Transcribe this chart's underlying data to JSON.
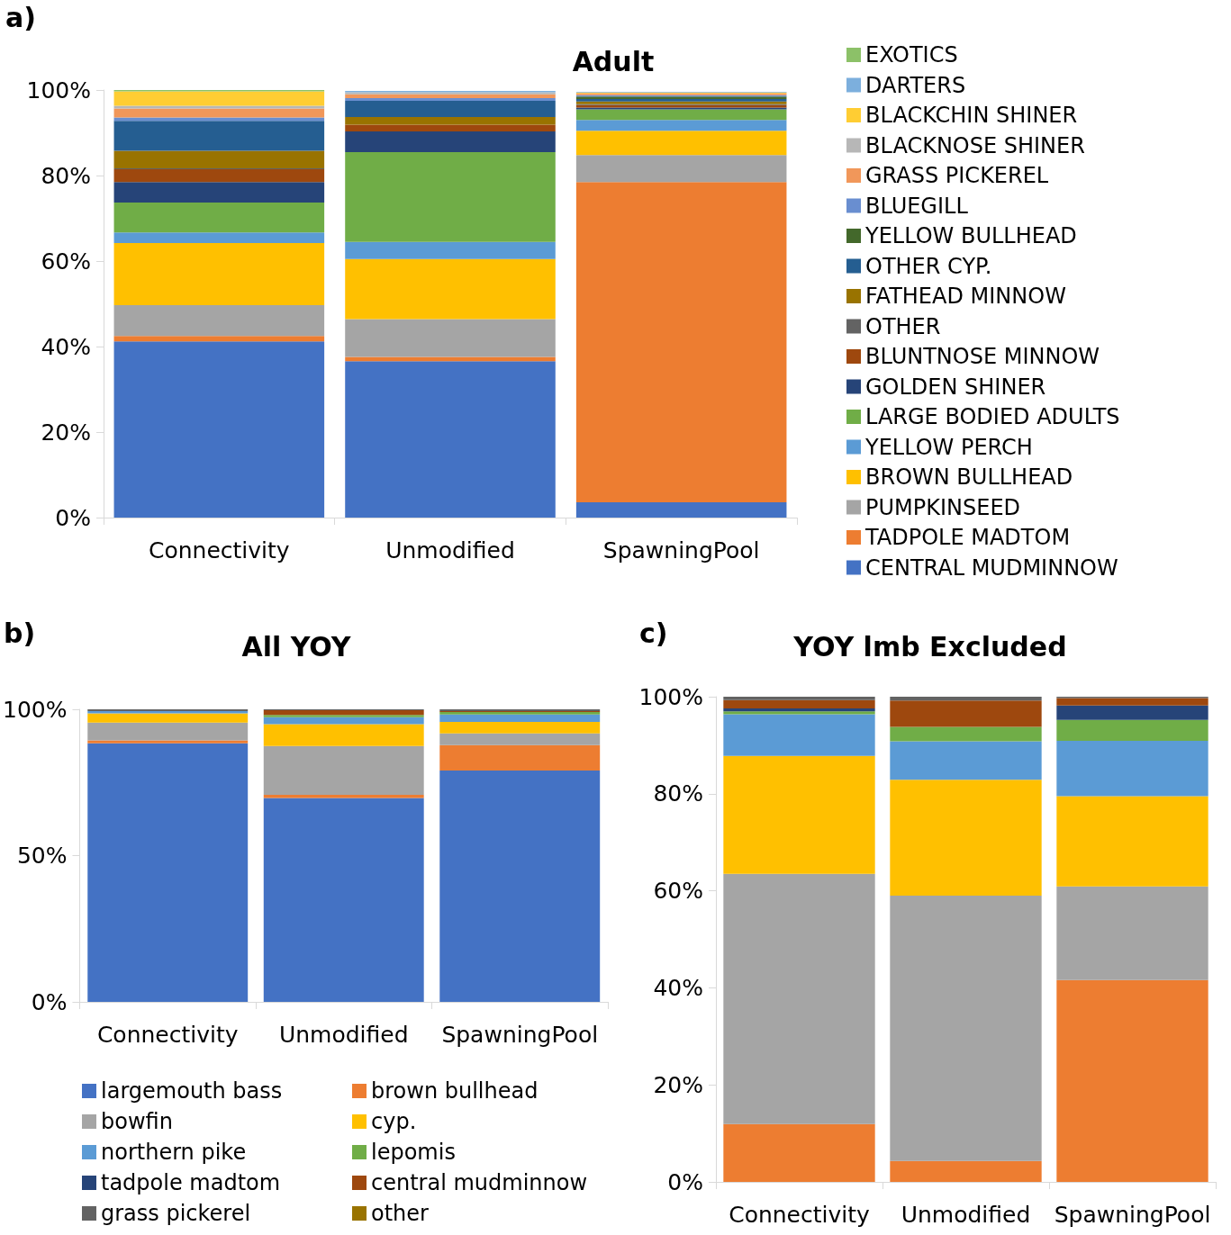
{
  "chart_data": [
    {
      "type": "bar",
      "title": "Adult",
      "annotations": [
        "a)"
      ],
      "categories": [
        "Connectivity",
        "Unmodified",
        "SpawningPool"
      ],
      "stacked": true,
      "legend": "right",
      "grid": false,
      "ylim": [
        0,
        100
      ],
      "yticks": [
        {
          "value": 0,
          "label": "0%"
        },
        {
          "value": 20,
          "label": "20%"
        },
        {
          "value": 40,
          "label": "40%"
        },
        {
          "value": 60,
          "label": "60%"
        },
        {
          "value": 80,
          "label": "80%"
        },
        {
          "value": 100,
          "label": "100%"
        }
      ],
      "series": [
        {
          "name": "CENTRAL MUDMINNOW",
          "color": "#4472c4",
          "values": [
            41.2,
            36.6,
            3.6
          ]
        },
        {
          "name": "TADPOLE MADTOM",
          "color": "#ed7d31",
          "values": [
            1.3,
            1.0,
            74.9
          ]
        },
        {
          "name": "PUMPKINSEED",
          "color": "#a5a5a5",
          "values": [
            7.2,
            8.8,
            6.3
          ]
        },
        {
          "name": "BROWN BULLHEAD",
          "color": "#ffc000",
          "values": [
            14.5,
            14.1,
            5.7
          ]
        },
        {
          "name": "YELLOW PERCH",
          "color": "#5b9bd5",
          "values": [
            2.5,
            4.0,
            2.5
          ]
        },
        {
          "name": "LARGE BODIED ADULTS",
          "color": "#70ad47",
          "values": [
            7.0,
            21.0,
            2.5
          ]
        },
        {
          "name": "GOLDEN SHINER",
          "color": "#264478",
          "values": [
            4.8,
            4.8,
            0.4
          ]
        },
        {
          "name": "BLUNTNOSE MINNOW",
          "color": "#9e480e",
          "values": [
            3.0,
            1.6,
            0.6
          ]
        },
        {
          "name": "OTHER",
          "color": "#636363",
          "values": [
            0.2,
            null,
            0.2
          ]
        },
        {
          "name": "FATHEAD MINNOW",
          "color": "#997300",
          "values": [
            4.1,
            1.8,
            0.6
          ]
        },
        {
          "name": "OTHER CYP.",
          "color": "#255e91",
          "values": [
            7.0,
            3.8,
            0.6
          ]
        },
        {
          "name": "YELLOW BULLHEAD",
          "color": "#43682b",
          "values": [
            0,
            0,
            0.6
          ]
        },
        {
          "name": "BLUEGILL",
          "color": "#698ed0",
          "values": [
            0.8,
            0.6,
            0.3
          ]
        },
        {
          "name": "GRASS PICKEREL",
          "color": "#f1975a",
          "values": [
            2.1,
            0.9,
            0.4
          ]
        },
        {
          "name": "BLACKNOSE SHINER",
          "color": "#b7b7b7",
          "values": [
            0.6,
            0.5,
            null
          ]
        },
        {
          "name": "BLACKCHIN SHINER",
          "color": "#ffcd33",
          "values": [
            3.4,
            0,
            0.2
          ]
        },
        {
          "name": "DARTERS",
          "color": "#7cafdd",
          "values": [
            0,
            0.3,
            0.2
          ]
        },
        {
          "name": "EXOTICS",
          "color": "#8cc168",
          "values": [
            0.3,
            0,
            null
          ]
        }
      ]
    },
    {
      "type": "bar",
      "title": "All YOY",
      "annotations": [
        "b)"
      ],
      "categories": [
        "Connectivity",
        "Unmodified",
        "SpawningPool"
      ],
      "stacked": true,
      "legend": "bottom",
      "grid": false,
      "ylim": [
        0,
        100
      ],
      "yticks": [
        {
          "value": 0,
          "label": "0%"
        },
        {
          "value": 50,
          "label": "50%"
        },
        {
          "value": 100,
          "label": "100%"
        }
      ],
      "series": [
        {
          "name": "largemouth bass",
          "color": "#4472c4",
          "values": [
            88.4,
            69.7,
            79.1
          ]
        },
        {
          "name": "brown bullhead",
          "color": "#ed7d31",
          "values": [
            1.0,
            1.1,
            8.7
          ]
        },
        {
          "name": "bowfin",
          "color": "#a5a5a5",
          "values": [
            6.1,
            16.7,
            4.0
          ]
        },
        {
          "name": "cyp.",
          "color": "#ffc000",
          "values": [
            3.1,
            7.4,
            3.9
          ]
        },
        {
          "name": "northern pike",
          "color": "#5b9bd5",
          "values": [
            0.8,
            2.4,
            2.5
          ]
        },
        {
          "name": "lepomis",
          "color": "#70ad47",
          "values": [
            0,
            0.8,
            0.9
          ]
        },
        {
          "name": "tadpole madtom",
          "color": "#264478",
          "values": [
            0,
            0,
            0
          ]
        },
        {
          "name": "central mudminnow",
          "color": "#9e480e",
          "values": [
            0,
            1.6,
            0.3
          ]
        },
        {
          "name": "grass pickerel",
          "color": "#636363",
          "values": [
            0.6,
            0.3,
            0.6
          ]
        },
        {
          "name": "other",
          "color": "#997300",
          "values": [
            0,
            0,
            0
          ]
        }
      ]
    },
    {
      "type": "bar",
      "title": "YOY lmb Excluded",
      "annotations": [
        "c)"
      ],
      "categories": [
        "Connectivity",
        "Unmodified",
        "SpawningPool"
      ],
      "stacked": true,
      "grid": false,
      "ylim": [
        0,
        100
      ],
      "yticks": [
        {
          "value": 0,
          "label": "0%"
        },
        {
          "value": 20,
          "label": "20%"
        },
        {
          "value": 40,
          "label": "40%"
        },
        {
          "value": 60,
          "label": "60%"
        },
        {
          "value": 80,
          "label": "80%"
        },
        {
          "value": 100,
          "label": "100%"
        }
      ],
      "series": [
        {
          "color": "#ed7d31",
          "values": [
            11.9,
            4.3,
            41.6
          ]
        },
        {
          "color": "#a5a5a5",
          "values": [
            51.6,
            54.7,
            19.3
          ]
        },
        {
          "color": "#ffc000",
          "values": [
            24.3,
            23.9,
            18.6
          ]
        },
        {
          "color": "#5b9bd5",
          "values": [
            8.6,
            7.9,
            11.4
          ]
        },
        {
          "color": "#70ad47",
          "values": [
            0.6,
            3.0,
            4.3
          ]
        },
        {
          "color": "#264478",
          "values": [
            0.6,
            0,
            3.0
          ]
        },
        {
          "color": "#9e480e",
          "values": [
            1.7,
            5.4,
            1.5
          ]
        },
        {
          "color": "#636363",
          "values": [
            0.7,
            0.8,
            0.3
          ]
        }
      ]
    }
  ]
}
